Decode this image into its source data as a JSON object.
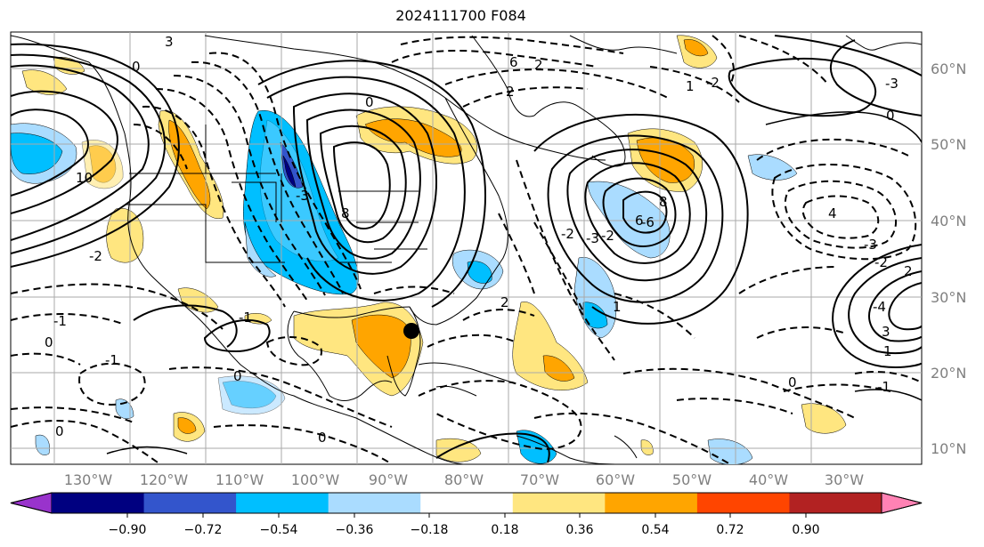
{
  "title": "2024111700 F084",
  "map": {
    "lon_labels": [
      "130°W",
      "120°W",
      "110°W",
      "100°W",
      "90°W",
      "80°W",
      "70°W",
      "60°W",
      "50°W",
      "40°W",
      "30°W"
    ],
    "lat_labels": [
      "60°N",
      "50°N",
      "40°N",
      "30°N",
      "20°N",
      "10°N"
    ],
    "contour_labels": [
      "3",
      "0",
      "-3",
      "6",
      "2",
      "-1",
      "1",
      "-2",
      "0",
      "-1",
      "0",
      "10",
      "8",
      "-2",
      "2",
      "6",
      "8",
      "-3",
      "0",
      "-3",
      "4",
      "-4",
      "-2",
      "3",
      "0",
      "0",
      "-1",
      "-1",
      "2",
      "-2",
      "1",
      "2",
      "-2",
      "1",
      "0",
      "0",
      "-3",
      "-6"
    ],
    "marker": "storm-center-marker"
  },
  "colorbar": {
    "ticks": [
      "−0.90",
      "−0.72",
      "−0.54",
      "−0.36",
      "−0.18",
      "0.18",
      "0.36",
      "0.54",
      "0.72",
      "0.90"
    ],
    "colors": [
      "#9933cc",
      "#000080",
      "#3355cc",
      "#00bfff",
      "#aadcff",
      "#ffffff",
      "#ffe680",
      "#ffa500",
      "#ff4500",
      "#b22222",
      "#ff82b4"
    ]
  }
}
